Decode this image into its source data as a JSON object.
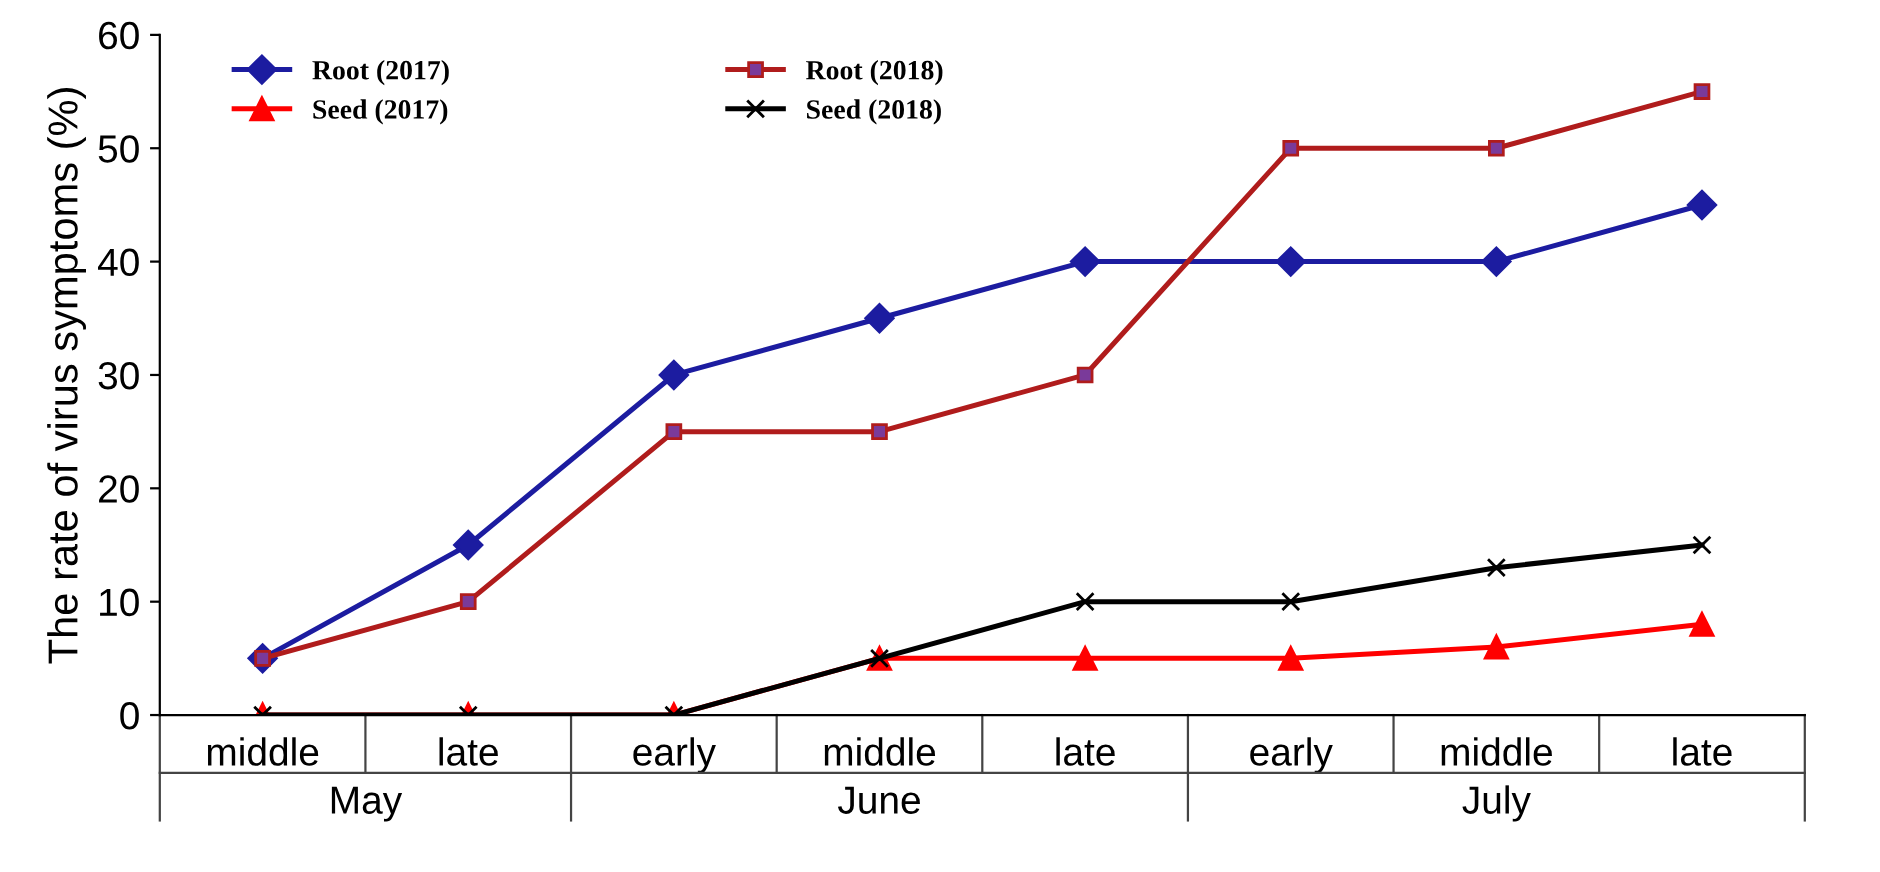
{
  "chart_data": {
    "type": "line",
    "ylabel": "The rate of virus symptoms (%)",
    "categories": [
      "middle",
      "late",
      "early",
      "middle",
      "late",
      "early",
      "middle",
      "late"
    ],
    "annotations": [
      "May",
      "June",
      "July"
    ],
    "series": [
      {
        "name": "Root (2017)",
        "color": "#1c1ca0",
        "marker": "diamond",
        "values": [
          5,
          15,
          30,
          35,
          40,
          40,
          40,
          45
        ]
      },
      {
        "name": "Root (2018)",
        "color": "#b01c1c",
        "marker": "square",
        "values": [
          5,
          10,
          25,
          25,
          30,
          50,
          50,
          55
        ]
      },
      {
        "name": "Seed (2017)",
        "color": "#ff0000",
        "marker": "triangle",
        "values": [
          0,
          0,
          0,
          5,
          5,
          5,
          6,
          8
        ]
      },
      {
        "name": "Seed (2018)",
        "color": "#000000",
        "marker": "cross",
        "values": [
          0,
          0,
          0,
          5,
          10,
          10,
          13,
          15
        ]
      }
    ],
    "ylim": [
      0,
      60
    ],
    "yticks": [
      0,
      10,
      20,
      30,
      40,
      50,
      60
    ],
    "grid": false,
    "legend": "top left"
  }
}
